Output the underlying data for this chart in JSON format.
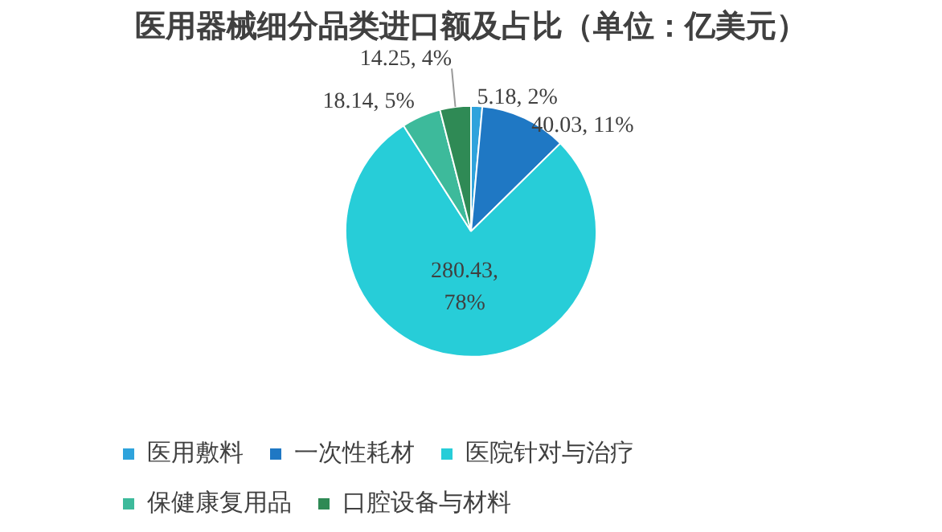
{
  "chart_data": {
    "type": "pie",
    "title": "医用器械细分品类进口额及占比（单位：亿美元）",
    "categories": [
      "医用敷料",
      "一次性耗材",
      "医院针对与治疗",
      "保健康复用品",
      "口腔设备与材料"
    ],
    "values": [
      5.18,
      40.03,
      280.43,
      18.14,
      14.25
    ],
    "value_labels": [
      "5.18, 2%",
      "40.03, 11%",
      "280.43, 78%",
      "18.14, 5%",
      "14.25, 4%"
    ],
    "colors": [
      "#2ea3dc",
      "#1f78c4",
      "#27cdd8",
      "#3dba9b",
      "#2f8a55"
    ],
    "legend": "bottom"
  }
}
